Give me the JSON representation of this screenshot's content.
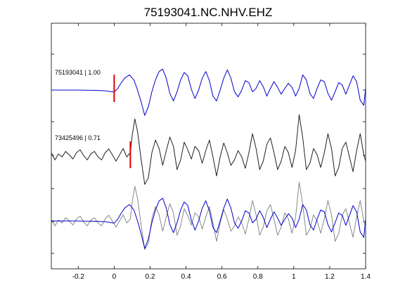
{
  "chart_data": {
    "type": "line",
    "title": "75193041.NC.NHV.EHZ",
    "xlabel": "",
    "ylabel": "",
    "xlim": [
      -0.35,
      1.4
    ],
    "x_ticks": [
      -0.2,
      0,
      0.2,
      0.4,
      0.6,
      0.8,
      1,
      1.2,
      1.4
    ],
    "x_tick_labels": [
      "-0.2",
      "0",
      "0.2",
      "0.4",
      "0.6",
      "0.8",
      "1",
      "1.2",
      "1.4"
    ],
    "grid": false,
    "colors": {
      "blue": "#0000cc",
      "black": "#222222",
      "gray": "#888888",
      "marker": "#dd0000"
    },
    "traces": [
      {
        "label": "75193041 | 1.00",
        "color": "blue",
        "pick_time": 0.0
      },
      {
        "label": "73425496 | 0.71",
        "color": "black",
        "pick_time": 0.09
      }
    ],
    "overlay": {
      "colors": [
        "gray",
        "blue"
      ]
    },
    "waveform_blue": [
      [
        -0.35,
        0.0
      ],
      [
        -0.3,
        0.0
      ],
      [
        -0.2,
        0.0
      ],
      [
        -0.1,
        -0.01
      ],
      [
        -0.05,
        -0.02
      ],
      [
        0.0,
        -0.06
      ],
      [
        0.02,
        0.05
      ],
      [
        0.04,
        0.22
      ],
      [
        0.06,
        0.36
      ],
      [
        0.085,
        0.45
      ],
      [
        0.11,
        0.3
      ],
      [
        0.13,
        0.0
      ],
      [
        0.15,
        -0.35
      ],
      [
        0.17,
        -0.75
      ],
      [
        0.19,
        -0.5
      ],
      [
        0.21,
        -0.05
      ],
      [
        0.23,
        0.3
      ],
      [
        0.25,
        0.55
      ],
      [
        0.27,
        0.62
      ],
      [
        0.29,
        0.35
      ],
      [
        0.31,
        -0.1
      ],
      [
        0.33,
        -0.32
      ],
      [
        0.35,
        -0.05
      ],
      [
        0.37,
        0.3
      ],
      [
        0.39,
        0.52
      ],
      [
        0.41,
        0.42
      ],
      [
        0.43,
        0.02
      ],
      [
        0.45,
        -0.25
      ],
      [
        0.47,
        0.0
      ],
      [
        0.49,
        0.35
      ],
      [
        0.51,
        0.55
      ],
      [
        0.53,
        0.28
      ],
      [
        0.55,
        -0.18
      ],
      [
        0.57,
        -0.32
      ],
      [
        0.59,
        0.0
      ],
      [
        0.61,
        0.35
      ],
      [
        0.63,
        0.6
      ],
      [
        0.65,
        0.35
      ],
      [
        0.67,
        -0.05
      ],
      [
        0.69,
        -0.2
      ],
      [
        0.71,
        0.0
      ],
      [
        0.73,
        0.28
      ],
      [
        0.75,
        0.22
      ],
      [
        0.77,
        -0.05
      ],
      [
        0.79,
        0.05
      ],
      [
        0.81,
        0.28
      ],
      [
        0.83,
        0.1
      ],
      [
        0.85,
        -0.18
      ],
      [
        0.87,
        0.05
      ],
      [
        0.89,
        0.25
      ],
      [
        0.91,
        0.08
      ],
      [
        0.93,
        -0.12
      ],
      [
        0.95,
        0.05
      ],
      [
        0.97,
        0.2
      ],
      [
        0.99,
        0.08
      ],
      [
        1.01,
        -0.18
      ],
      [
        1.03,
        0.05
      ],
      [
        1.05,
        0.45
      ],
      [
        1.07,
        0.3
      ],
      [
        1.09,
        -0.1
      ],
      [
        1.11,
        -0.25
      ],
      [
        1.13,
        0.05
      ],
      [
        1.15,
        0.3
      ],
      [
        1.17,
        0.25
      ],
      [
        1.19,
        -0.1
      ],
      [
        1.21,
        -0.3
      ],
      [
        1.23,
        -0.05
      ],
      [
        1.25,
        0.22
      ],
      [
        1.27,
        0.15
      ],
      [
        1.29,
        -0.12
      ],
      [
        1.31,
        0.15
      ],
      [
        1.33,
        0.42
      ],
      [
        1.35,
        0.25
      ],
      [
        1.37,
        -0.3
      ],
      [
        1.39,
        -0.45
      ],
      [
        1.4,
        0.05
      ]
    ],
    "waveform_black": [
      [
        -0.35,
        0.05
      ],
      [
        -0.33,
        -0.12
      ],
      [
        -0.31,
        0.02
      ],
      [
        -0.29,
        -0.05
      ],
      [
        -0.27,
        0.08
      ],
      [
        -0.25,
        0.0
      ],
      [
        -0.23,
        -0.1
      ],
      [
        -0.21,
        0.05
      ],
      [
        -0.19,
        0.12
      ],
      [
        -0.17,
        -0.02
      ],
      [
        -0.15,
        -0.12
      ],
      [
        -0.13,
        0.02
      ],
      [
        -0.11,
        0.08
      ],
      [
        -0.09,
        -0.05
      ],
      [
        -0.07,
        -0.12
      ],
      [
        -0.05,
        0.05
      ],
      [
        -0.03,
        0.14
      ],
      [
        -0.01,
        0.0
      ],
      [
        0.01,
        -0.15
      ],
      [
        0.03,
        0.0
      ],
      [
        0.05,
        0.15
      ],
      [
        0.07,
        -0.05
      ],
      [
        0.09,
        0.05
      ],
      [
        0.1,
        0.45
      ],
      [
        0.115,
        0.85
      ],
      [
        0.13,
        0.55
      ],
      [
        0.15,
        -0.1
      ],
      [
        0.17,
        -0.7
      ],
      [
        0.19,
        -0.55
      ],
      [
        0.21,
        0.05
      ],
      [
        0.23,
        0.35
      ],
      [
        0.25,
        0.15
      ],
      [
        0.27,
        -0.25
      ],
      [
        0.29,
        0.1
      ],
      [
        0.31,
        0.42
      ],
      [
        0.33,
        0.2
      ],
      [
        0.35,
        -0.35
      ],
      [
        0.37,
        -0.12
      ],
      [
        0.39,
        0.3
      ],
      [
        0.41,
        0.12
      ],
      [
        0.43,
        -0.1
      ],
      [
        0.45,
        0.2
      ],
      [
        0.47,
        0.1
      ],
      [
        0.49,
        -0.2
      ],
      [
        0.51,
        0.1
      ],
      [
        0.53,
        0.35
      ],
      [
        0.55,
        -0.05
      ],
      [
        0.57,
        -0.5
      ],
      [
        0.59,
        -0.05
      ],
      [
        0.61,
        0.28
      ],
      [
        0.63,
        0.05
      ],
      [
        0.65,
        -0.25
      ],
      [
        0.67,
        -0.12
      ],
      [
        0.69,
        0.1
      ],
      [
        0.71,
        -0.05
      ],
      [
        0.73,
        -0.32
      ],
      [
        0.75,
        0.05
      ],
      [
        0.77,
        0.5
      ],
      [
        0.79,
        0.15
      ],
      [
        0.81,
        -0.35
      ],
      [
        0.83,
        -0.15
      ],
      [
        0.85,
        0.25
      ],
      [
        0.87,
        0.4
      ],
      [
        0.89,
        0.05
      ],
      [
        0.91,
        -0.35
      ],
      [
        0.93,
        -0.15
      ],
      [
        0.95,
        0.2
      ],
      [
        0.97,
        0.05
      ],
      [
        0.99,
        -0.3
      ],
      [
        1.01,
        0.1
      ],
      [
        1.03,
        0.95
      ],
      [
        1.05,
        0.4
      ],
      [
        1.07,
        -0.35
      ],
      [
        1.09,
        -0.2
      ],
      [
        1.11,
        0.15
      ],
      [
        1.13,
        0.0
      ],
      [
        1.15,
        -0.3
      ],
      [
        1.17,
        0.05
      ],
      [
        1.19,
        0.5
      ],
      [
        1.21,
        0.15
      ],
      [
        1.23,
        -0.5
      ],
      [
        1.25,
        -0.3
      ],
      [
        1.27,
        0.15
      ],
      [
        1.29,
        0.3
      ],
      [
        1.31,
        -0.05
      ],
      [
        1.33,
        -0.4
      ],
      [
        1.35,
        0.1
      ],
      [
        1.37,
        0.5
      ],
      [
        1.39,
        0.0
      ],
      [
        1.4,
        -0.15
      ]
    ]
  }
}
